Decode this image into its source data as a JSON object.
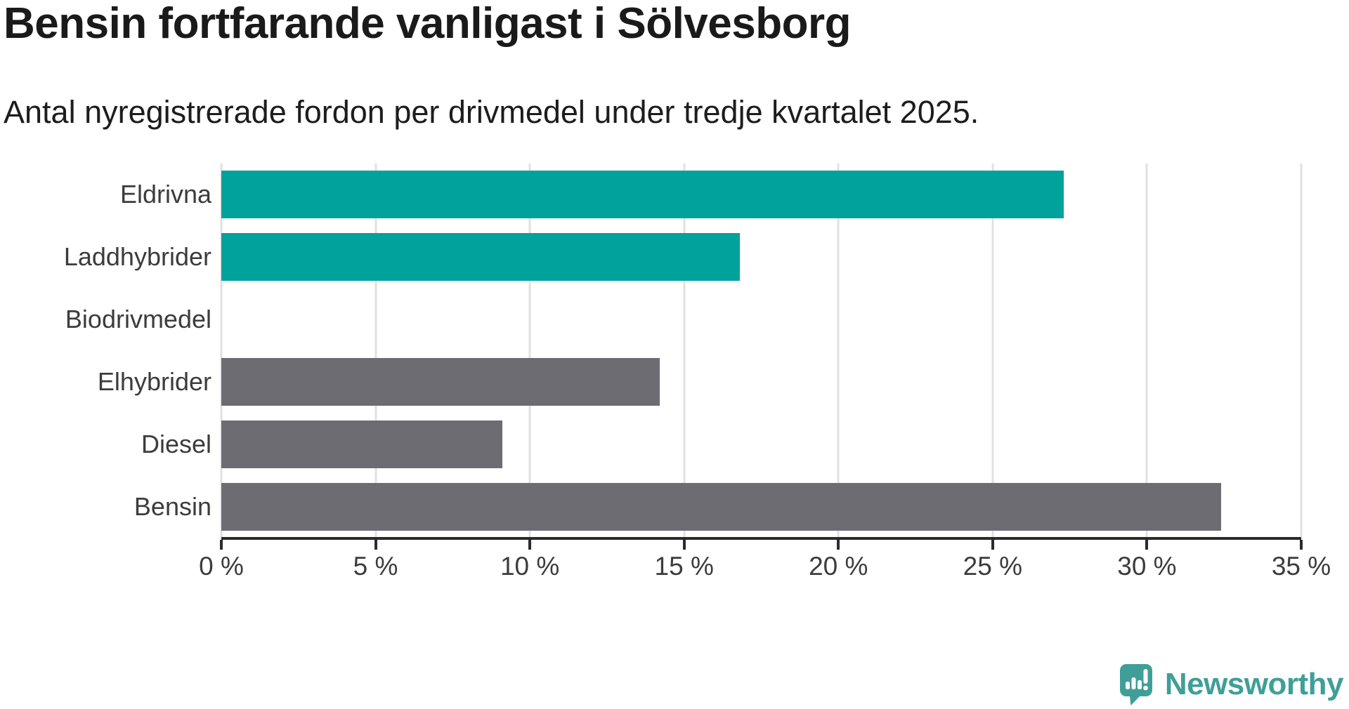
{
  "title": "Bensin fortfarande vanligast i Sölvesborg",
  "subtitle": "Antal nyregistrerade fordon per drivmedel under tredje kvartalet 2025.",
  "chart_data": {
    "type": "bar",
    "orientation": "horizontal",
    "title": "Bensin fortfarande vanligast i Sölvesborg",
    "subtitle": "Antal nyregistrerade fordon per drivmedel under tredje kvartalet 2025.",
    "categories": [
      "Eldrivna",
      "Laddhybrider",
      "Biodrivmedel",
      "Elhybrider",
      "Diesel",
      "Bensin"
    ],
    "values": [
      27.3,
      16.8,
      0,
      14.2,
      9.1,
      32.4
    ],
    "unit": "%",
    "bar_colors": [
      "#00a29b",
      "#00a29b",
      "#00a29b",
      "#6d6c72",
      "#6d6c72",
      "#6d6c72"
    ],
    "x_ticks": [
      "0 %",
      "5 %",
      "10 %",
      "15 %",
      "20 %",
      "25 %",
      "30 %",
      "35 %"
    ],
    "x_tick_values": [
      0,
      5,
      10,
      15,
      20,
      25,
      30,
      35
    ],
    "xlim": [
      0,
      35
    ],
    "grid": true,
    "legend": "none"
  },
  "colors": {
    "highlight_teal": "#00a29b",
    "neutral_gray": "#6d6c72",
    "gridline": "#e1e1e1",
    "axis": "#2b2b2b",
    "title_text": "#1a1a1a",
    "subtitle_text": "#1d1d1d",
    "label_text": "#3c3c3c",
    "logo_teal": "#3f9f98",
    "background": "#ffffff"
  },
  "branding": {
    "logo_text": "Newsworthy",
    "logo_icon": "newsworthy-speech-bubble-chart-icon"
  }
}
